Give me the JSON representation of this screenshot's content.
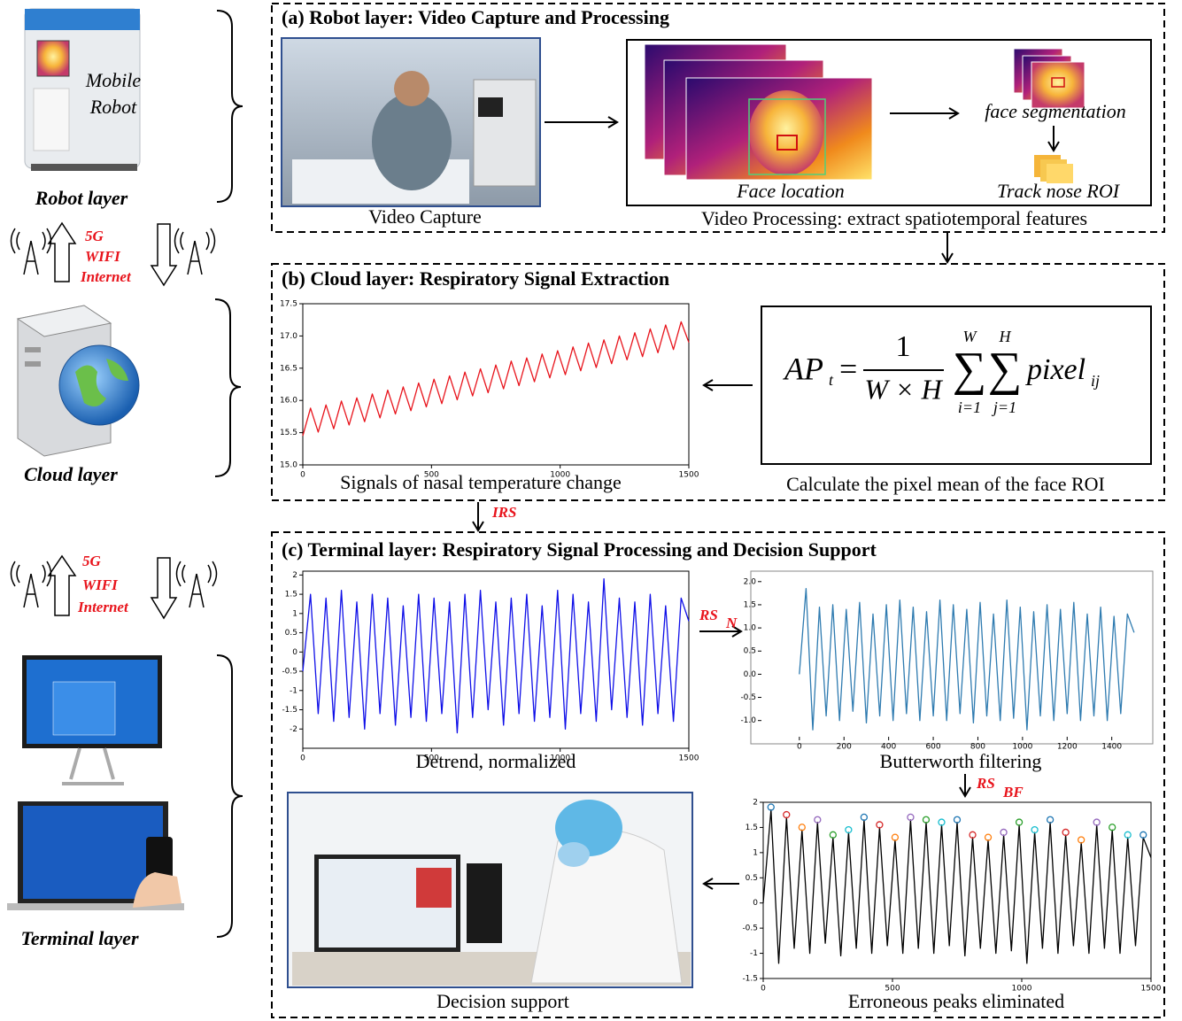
{
  "left": {
    "robot_label": [
      "Mobile",
      "Robot"
    ],
    "layers": [
      "Robot layer",
      "Cloud layer",
      "Terminal layer"
    ],
    "links": [
      [
        "5G",
        "WIFI",
        "Internet"
      ],
      [
        "5G",
        "WIFI",
        "Internet"
      ]
    ]
  },
  "panels": [
    {
      "title": "(a) Robot layer: Video Capture and Processing",
      "captions": [
        "Video Capture",
        "Video Processing: extract spatiotemporal features"
      ],
      "labels": [
        "face segmentation",
        "Face location",
        "Track nose ROI"
      ]
    },
    {
      "title": "(b) Cloud layer: Respiratory Signal Extraction",
      "captions": [
        "Signals of nasal temperature change",
        "Calculate the pixel mean of the face ROI"
      ]
    },
    {
      "title": "(c) Terminal layer: Respiratory Signal Processing and Decision Support",
      "captions": [
        "Detrend, normalized",
        "Butterworth filtering",
        "Decision support",
        "Erroneous peaks eliminated"
      ]
    }
  ],
  "signals": [
    {
      "text": "IRS"
    },
    {
      "text": "RS",
      "sub": "N"
    },
    {
      "text": "RS",
      "sub": "BF"
    }
  ],
  "formula": {
    "lhs": "AP",
    "lhs_sub": "t",
    "equals": "=",
    "numerator": "1",
    "denominator": "W × H",
    "sum": "∑",
    "sum1_top": "W",
    "sum1_bottom": "i=1",
    "sum2_top": "H",
    "sum2_bottom": "j=1",
    "term": "pixel",
    "term_sub": "ij"
  },
  "chart_data": [
    {
      "type": "line",
      "color": "#e8141c",
      "xlim": [
        0,
        1500
      ],
      "ylim": [
        15,
        17.5
      ],
      "xticks": [
        0,
        500,
        1000,
        1500
      ],
      "yticks": [
        {
          "value": 15,
          "label": "15.0"
        },
        15.5,
        {
          "value": 16,
          "label": "16.0"
        },
        16.5,
        {
          "value": 17,
          "label": "17.0"
        },
        17.5
      ],
      "x": [
        0,
        30,
        60,
        90,
        120,
        150,
        180,
        210,
        240,
        270,
        300,
        330,
        360,
        390,
        420,
        450,
        480,
        510,
        540,
        570,
        600,
        630,
        660,
        690,
        720,
        750,
        780,
        810,
        840,
        870,
        900,
        930,
        960,
        990,
        1020,
        1050,
        1080,
        1110,
        1140,
        1170,
        1200,
        1230,
        1260,
        1290,
        1320,
        1350,
        1380,
        1410,
        1440,
        1470,
        1500
      ],
      "values": [
        15.45,
        15.88,
        15.51,
        15.93,
        15.56,
        15.99,
        15.62,
        16.04,
        15.67,
        16.1,
        15.73,
        16.16,
        15.79,
        16.21,
        15.84,
        16.27,
        15.9,
        16.33,
        15.95,
        16.38,
        16.01,
        16.44,
        16.07,
        16.49,
        16.12,
        16.55,
        16.18,
        16.61,
        16.23,
        16.66,
        16.29,
        16.72,
        16.35,
        16.77,
        16.4,
        16.83,
        16.46,
        16.89,
        16.51,
        16.94,
        16.57,
        17.0,
        16.63,
        17.05,
        16.68,
        17.11,
        16.74,
        17.17,
        16.79,
        17.22,
        16.9
      ]
    },
    {
      "type": "line",
      "color": "#1010e8",
      "xlim": [
        0,
        1500
      ],
      "ylim": [
        -2.5,
        2.1
      ],
      "xticks": [
        0,
        500,
        1000,
        1500
      ],
      "yticks": [
        -2,
        -1.5,
        -1,
        -0.5,
        0,
        0.5,
        1,
        1.5,
        2
      ],
      "x": [
        0,
        30,
        60,
        90,
        120,
        150,
        180,
        210,
        240,
        270,
        300,
        330,
        360,
        390,
        420,
        450,
        480,
        510,
        540,
        570,
        600,
        630,
        660,
        690,
        720,
        750,
        780,
        810,
        840,
        870,
        900,
        930,
        960,
        990,
        1020,
        1050,
        1080,
        1110,
        1140,
        1170,
        1200,
        1230,
        1260,
        1290,
        1320,
        1350,
        1380,
        1410,
        1440,
        1470,
        1500
      ],
      "values": [
        -0.5,
        1.5,
        -1.6,
        1.4,
        -1.8,
        1.6,
        -1.7,
        1.3,
        -2.0,
        1.5,
        -1.6,
        1.4,
        -1.9,
        1.2,
        -1.7,
        1.5,
        -1.8,
        1.4,
        -1.6,
        1.3,
        -2.1,
        1.5,
        -1.7,
        1.6,
        -1.5,
        1.3,
        -1.9,
        1.4,
        -1.6,
        1.5,
        -1.8,
        1.2,
        -1.7,
        1.6,
        -2.0,
        1.5,
        -1.6,
        1.3,
        -1.8,
        1.9,
        -1.5,
        1.4,
        -1.7,
        1.3,
        -1.9,
        1.5,
        -1.6,
        1.2,
        -1.8,
        1.4,
        0.8
      ]
    },
    {
      "type": "line",
      "color": "#2f7bb0",
      "xlim": [
        -170,
        1560
      ],
      "ylim": [
        -1.35,
        2.13
      ],
      "xticks": [
        0,
        200,
        400,
        600,
        800,
        1000,
        1200,
        1400
      ],
      "yticks": [
        {
          "value": -1,
          "label": "-1.0"
        },
        -0.5,
        {
          "value": 0,
          "label": "0.0"
        },
        0.5,
        {
          "value": 1,
          "label": "1.0"
        },
        1.5,
        {
          "value": 2,
          "label": "2.0"
        }
      ],
      "x": [
        0,
        30,
        60,
        90,
        120,
        150,
        180,
        210,
        240,
        270,
        300,
        330,
        360,
        390,
        420,
        450,
        480,
        510,
        540,
        570,
        600,
        630,
        660,
        690,
        720,
        750,
        780,
        810,
        840,
        870,
        900,
        930,
        960,
        990,
        1020,
        1050,
        1080,
        1110,
        1140,
        1170,
        1200,
        1230,
        1260,
        1290,
        1320,
        1350,
        1380,
        1410,
        1440,
        1470,
        1500
      ],
      "values": [
        0.0,
        1.85,
        -1.2,
        1.45,
        -0.9,
        1.5,
        -1.0,
        1.4,
        -0.8,
        1.55,
        -1.05,
        1.3,
        -0.9,
        1.5,
        -1.0,
        1.6,
        -0.85,
        1.45,
        -1.0,
        1.35,
        -0.9,
        1.6,
        -1.0,
        1.5,
        -0.85,
        1.4,
        -1.05,
        1.55,
        -0.9,
        1.3,
        -1.0,
        1.6,
        -0.95,
        1.45,
        -1.2,
        1.35,
        -0.9,
        1.5,
        -1.0,
        1.4,
        -0.85,
        1.55,
        -1.0,
        1.3,
        -0.9,
        1.45,
        -1.0,
        1.25,
        -0.85,
        1.3,
        0.9
      ]
    },
    {
      "type": "line",
      "color": "#000000",
      "xlim": [
        0,
        1500
      ],
      "ylim": [
        -1.5,
        2
      ],
      "xticks": [
        0,
        500,
        1000,
        1500
      ],
      "yticks": [
        -1.5,
        -1,
        -0.5,
        0,
        0.5,
        1,
        1.5,
        2
      ],
      "x": [
        0,
        30,
        60,
        90,
        120,
        150,
        180,
        210,
        240,
        270,
        300,
        330,
        360,
        390,
        420,
        450,
        480,
        510,
        540,
        570,
        600,
        630,
        660,
        690,
        720,
        750,
        780,
        810,
        840,
        870,
        900,
        930,
        960,
        990,
        1020,
        1050,
        1080,
        1110,
        1140,
        1170,
        1200,
        1230,
        1260,
        1290,
        1320,
        1350,
        1380,
        1410,
        1440,
        1470,
        1500
      ],
      "values": [
        0,
        1.85,
        -1.2,
        1.7,
        -0.9,
        1.45,
        -1.0,
        1.6,
        -0.8,
        1.3,
        -1.05,
        1.4,
        -0.9,
        1.65,
        -1.0,
        1.5,
        -0.85,
        1.25,
        -1.0,
        1.65,
        -0.9,
        1.6,
        -1.0,
        1.55,
        -0.85,
        1.6,
        -1.05,
        1.3,
        -0.9,
        1.25,
        -1.0,
        1.35,
        -0.95,
        1.55,
        -1.2,
        1.4,
        -0.9,
        1.6,
        -1.0,
        1.35,
        -0.85,
        1.2,
        -1.0,
        1.55,
        -0.9,
        1.45,
        -1.0,
        1.3,
        -0.85,
        1.3,
        0.9
      ]
    }
  ]
}
